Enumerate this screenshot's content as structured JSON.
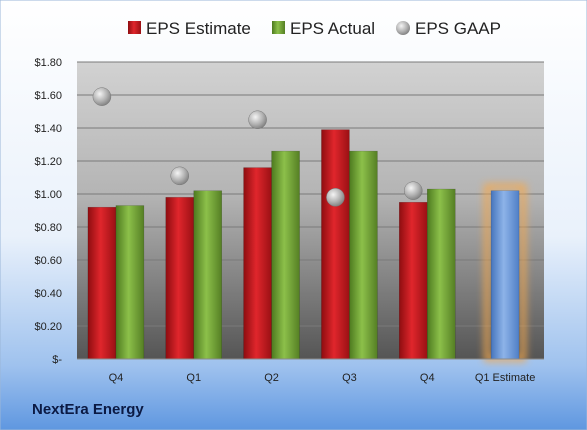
{
  "company_label": "NextEra Energy",
  "colors": {
    "estimate": "#c9181e",
    "actual": "#76a837",
    "gaap": "#a9a9a9",
    "estimate_future": "#6f9bd8",
    "highlight": "#f5a94e"
  },
  "chart_data": {
    "type": "bar",
    "categories": [
      "Q4",
      "Q1",
      "Q2",
      "Q3",
      "Q4",
      "Q1 Estimate"
    ],
    "series": [
      {
        "name": "EPS Estimate",
        "values": [
          0.92,
          0.98,
          1.16,
          1.39,
          0.95,
          null
        ]
      },
      {
        "name": "EPS Actual",
        "values": [
          0.93,
          1.02,
          1.26,
          1.26,
          1.03,
          null
        ]
      },
      {
        "name": "EPS GAAP",
        "type": "scatter",
        "values": [
          1.59,
          1.11,
          1.45,
          0.98,
          1.02,
          null
        ]
      }
    ],
    "forecast": {
      "category": "Q1 Estimate",
      "value": 1.02
    },
    "y_ticks": [
      "$-",
      "$0.20",
      "$0.40",
      "$0.60",
      "$0.80",
      "$1.00",
      "$1.20",
      "$1.40",
      "$1.60",
      "$1.80"
    ],
    "ylim": [
      0,
      1.8
    ],
    "legend_position": "top",
    "grid": true
  }
}
